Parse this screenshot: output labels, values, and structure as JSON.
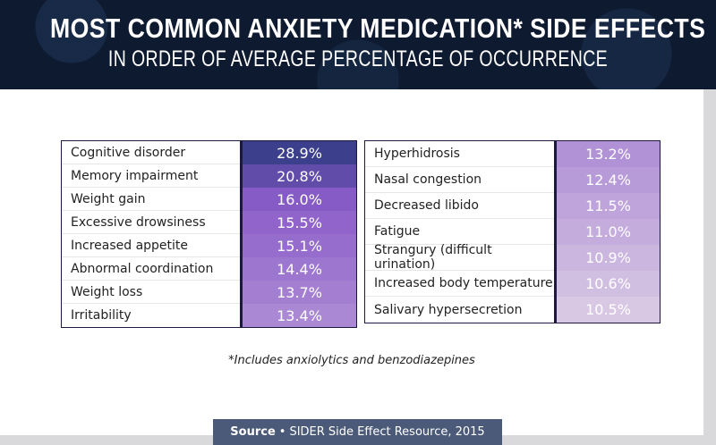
{
  "header": {
    "title": "MOST COMMON ANXIETY MEDICATION* SIDE EFFECTS",
    "subtitle": "IN ORDER OF AVERAGE PERCENTAGE OF OCCURRENCE"
  },
  "chart_data": {
    "type": "table",
    "title": "MOST COMMON ANXIETY MEDICATION* SIDE EFFECTS",
    "subtitle": "IN ORDER OF AVERAGE PERCENTAGE OF OCCURRENCE",
    "categories": [
      "Cognitive disorder",
      "Memory impairment",
      "Weight gain",
      "Excessive drowsiness",
      "Increased appetite",
      "Abnormal coordination",
      "Weight loss",
      "Irritability",
      "Hyperhidrosis",
      "Nasal congestion",
      "Decreased libido",
      "Fatigue",
      "Strangury (difficult urination)",
      "Increased body temperature",
      "Salivary hypersecretion"
    ],
    "values": [
      28.9,
      20.8,
      16.0,
      15.5,
      15.1,
      14.4,
      13.7,
      13.4,
      13.2,
      12.4,
      11.5,
      11.0,
      10.9,
      10.6,
      10.5
    ],
    "unit": "%",
    "left_table": [
      {
        "label": "Cognitive disorder",
        "value": "28.9%"
      },
      {
        "label": "Memory impairment",
        "value": "20.8%"
      },
      {
        "label": "Weight gain",
        "value": "16.0%"
      },
      {
        "label": "Excessive drowsiness",
        "value": "15.5%"
      },
      {
        "label": "Increased appetite",
        "value": "15.1%"
      },
      {
        "label": "Abnormal coordination",
        "value": "14.4%"
      },
      {
        "label": "Weight loss",
        "value": "13.7%"
      },
      {
        "label": "Irritability",
        "value": "13.4%"
      }
    ],
    "right_table": [
      {
        "label": "Hyperhidrosis",
        "value": "13.2%"
      },
      {
        "label": "Nasal congestion",
        "value": "12.4%"
      },
      {
        "label": "Decreased libido",
        "value": "11.5%"
      },
      {
        "label": "Fatigue",
        "value": "11.0%"
      },
      {
        "label": "Strangury (difficult urination)",
        "value": "10.9%"
      },
      {
        "label": "Increased body temperature",
        "value": "10.6%"
      },
      {
        "label": "Salivary hypersecretion",
        "value": "10.5%"
      }
    ],
    "colors": {
      "high": "#3b3f8c",
      "mid": "#8a5cc8",
      "low": "#d8c8e4",
      "border": "#1c1840"
    }
  },
  "footnote": "*Includes anxiolytics and benzodiazepines",
  "source": {
    "label": "Source",
    "separator": "•",
    "text": "SIDER Side Effect Resource, 2015"
  }
}
